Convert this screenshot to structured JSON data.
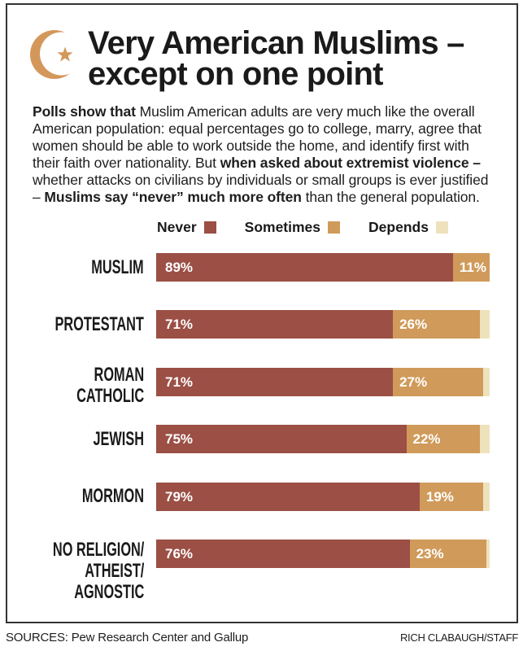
{
  "header": {
    "icon": "crescent-star-icon",
    "title_lines": [
      "Very American Muslims –",
      "except on one point"
    ]
  },
  "intro": {
    "lines": [
      [
        {
          "text": "Polls show that",
          "bold": true
        },
        {
          "text": " Muslim American adults are very much like the overall",
          "bold": false
        }
      ],
      [
        {
          "text": "American population: equal percentages go to college, marry, agree that",
          "bold": false
        }
      ],
      [
        {
          "text": "women should be able to work outside the home, and identify first with",
          "bold": false
        }
      ],
      [
        {
          "text": "their faith over nationality. But ",
          "bold": false
        },
        {
          "text": "when asked about extremist violence –",
          "bold": true
        }
      ],
      [
        {
          "text": "whether attacks on civilians by individuals or small groups is ever justified",
          "bold": false
        }
      ],
      [
        {
          "text": "– ",
          "bold": false
        },
        {
          "text": "Muslims say “never” much more often",
          "bold": true
        },
        {
          "text": " than the general population.",
          "bold": false
        }
      ]
    ]
  },
  "colors": {
    "accent": "#d4975a",
    "border": "#333333"
  },
  "footer": {
    "sources": "SOURCES: Pew Research Center and Gallup",
    "credit": "RICH CLABAUGH/STAFF"
  },
  "chart_data": {
    "type": "bar",
    "orientation": "horizontal",
    "stacked": true,
    "title": "Very American Muslims – except on one point",
    "xlabel": "",
    "ylabel": "",
    "xlim": [
      0,
      100
    ],
    "grid": false,
    "legend_position": "top",
    "value_suffix": "%",
    "categories": [
      "MUSLIM",
      "PROTESTANT",
      "ROMAN CATHOLIC",
      "JEWISH",
      "MORMON",
      "NO RELIGION/ ATHEIST/ AGNOSTIC"
    ],
    "category_label_lines": [
      [
        "MUSLIM"
      ],
      [
        "PROTESTANT"
      ],
      [
        "ROMAN",
        "CATHOLIC"
      ],
      [
        "JEWISH"
      ],
      [
        "MORMON"
      ],
      [
        "NO RELIGION/",
        "ATHEIST/",
        "AGNOSTIC"
      ]
    ],
    "series": [
      {
        "name": "Never",
        "values": [
          89,
          71,
          71,
          75,
          79,
          76
        ],
        "color": "#9b4f45",
        "show_labels": true
      },
      {
        "name": "Sometimes",
        "values": [
          11,
          26,
          27,
          22,
          19,
          23
        ],
        "color": "#d09a5a",
        "show_labels": true
      },
      {
        "name": "Depends",
        "values": [
          0,
          3,
          2,
          3,
          2,
          1
        ],
        "color": "#eee2bc",
        "show_labels": false
      }
    ]
  }
}
